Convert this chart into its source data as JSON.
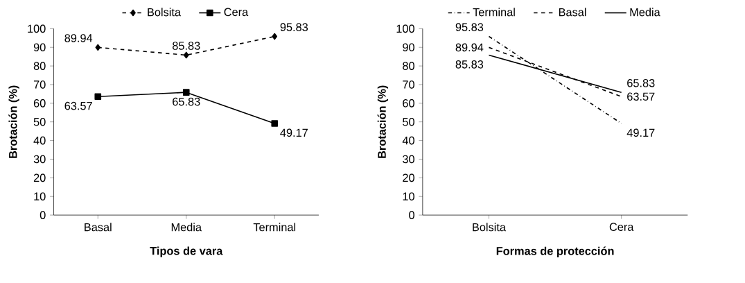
{
  "chart_data": [
    {
      "type": "line",
      "categories": [
        "Basal",
        "Media",
        "Terminal"
      ],
      "xlabel": "Tipos de vara",
      "ylabel": "Brotación (%)",
      "ylim": [
        0,
        100
      ],
      "yticks": [
        0,
        10,
        20,
        30,
        40,
        50,
        60,
        70,
        80,
        90,
        100
      ],
      "legend": "top",
      "data_labels": true,
      "series": [
        {
          "name": "Bolsita",
          "color": "#000000",
          "line_style": "dashed",
          "marker": "diamond",
          "values": [
            89.94,
            85.83,
            95.83
          ]
        },
        {
          "name": "Cera",
          "color": "#000000",
          "line_style": "solid",
          "marker": "square",
          "values": [
            63.57,
            65.83,
            49.17
          ]
        }
      ]
    },
    {
      "type": "line",
      "categories": [
        "Bolsita",
        "Cera"
      ],
      "xlabel": "Formas de protección",
      "ylabel": "Brotación (%)",
      "ylim": [
        0,
        100
      ],
      "yticks": [
        0,
        10,
        20,
        30,
        40,
        50,
        60,
        70,
        80,
        90,
        100
      ],
      "legend": "top",
      "data_labels": true,
      "series": [
        {
          "name": "Terminal",
          "color": "#000000",
          "line_style": "dashdot",
          "marker": "none",
          "values": [
            95.83,
            49.17
          ]
        },
        {
          "name": "Basal",
          "color": "#000000",
          "line_style": "dashed",
          "marker": "none",
          "values": [
            89.94,
            63.57
          ]
        },
        {
          "name": "Media",
          "color": "#000000",
          "line_style": "solid",
          "marker": "none",
          "values": [
            85.83,
            65.83
          ]
        }
      ]
    }
  ]
}
